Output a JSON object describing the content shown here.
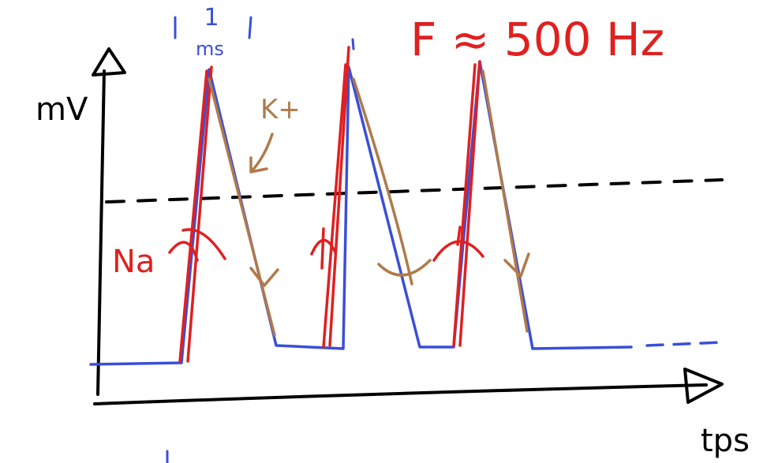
{
  "labels": {
    "y_axis": "mV",
    "x_axis": "tps",
    "duration_value": "1",
    "duration_unit": "ms",
    "frequency": "F ≈ 500 Hz",
    "potassium": "K+",
    "sodium": "Na"
  }
}
